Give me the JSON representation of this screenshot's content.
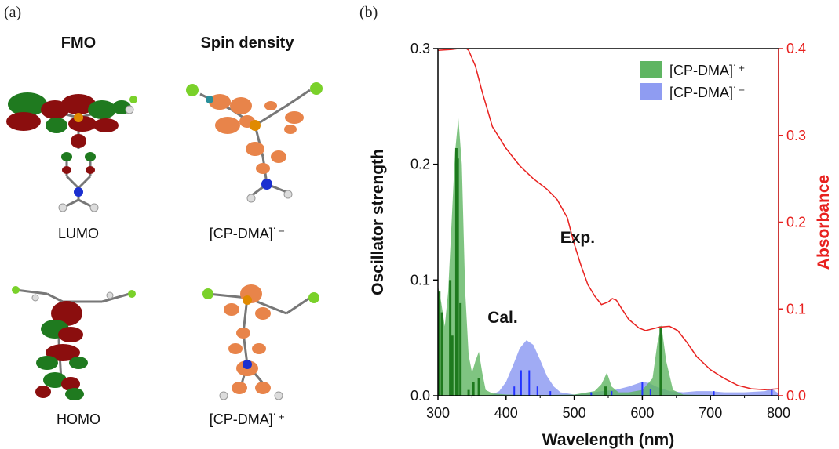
{
  "panel_a": {
    "tag": "(a)",
    "col_fmo": "FMO",
    "col_spin": "Spin density",
    "label_lumo": "LUMO",
    "label_homo": "HOMO",
    "label_anion": "[CP-DMA]˙⁻",
    "label_cation": "[CP-DMA]˙⁺",
    "colors": {
      "orbital_red": "#8b0e0e",
      "orbital_green": "#1f7a1f",
      "spin_orange": "#e8844a",
      "carbon": "#6f6f6f",
      "hydrogen": "#dcdcdc",
      "nitrogen": "#1b2fd0",
      "phosphorus": "#e08a00",
      "chlorine": "#7ad12a"
    }
  },
  "panel_b": {
    "tag": "(b)"
  },
  "chart_data": {
    "type": "line",
    "xlabel": "Wavelength (nm)",
    "ylabel_left": "Oscillator strength",
    "ylabel_right": "Absorbance",
    "xlim": [
      300,
      800
    ],
    "ylim_left": [
      0,
      0.3
    ],
    "ylim_right": [
      0,
      0.4
    ],
    "xticks": [
      "300",
      "400",
      "500",
      "600",
      "700",
      "800"
    ],
    "yticks_left": [
      "0.0",
      "0.1",
      "0.2",
      "0.3"
    ],
    "yticks_right": [
      "0.0",
      "0.1",
      "0.2",
      "0.3",
      "0.4"
    ],
    "legend_placement": "top-right",
    "annotations": {
      "exp": "Exp.",
      "cal": "Cal."
    },
    "colors": {
      "cation": "#3a9a3a",
      "cation_fill": "#5fb562",
      "anion": "#2233ff",
      "anion_fill": "#8f9cf2",
      "exp": "#e8211f",
      "axis_right": "#e8211f"
    },
    "series": [
      {
        "name": "[CP-DMA]˙⁺",
        "kind": "calc-envelope",
        "x": [
          300,
          305,
          310,
          315,
          320,
          325,
          330,
          335,
          340,
          345,
          350,
          355,
          360,
          365,
          370,
          380,
          400,
          450,
          500,
          530,
          540,
          548,
          555,
          565,
          580,
          600,
          615,
          622,
          628,
          635,
          645,
          660,
          700,
          800
        ],
        "values": [
          0.095,
          0.08,
          0.06,
          0.09,
          0.15,
          0.21,
          0.24,
          0.2,
          0.09,
          0.035,
          0.02,
          0.03,
          0.038,
          0.02,
          0.005,
          0.002,
          0.001,
          0.0005,
          0.001,
          0.004,
          0.01,
          0.02,
          0.008,
          0.003,
          0.003,
          0.005,
          0.015,
          0.045,
          0.061,
          0.03,
          0.005,
          0.001,
          0.0005,
          0.0003
        ],
        "sticks": [
          {
            "x": 302,
            "f": 0.09
          },
          {
            "x": 306,
            "f": 0.072
          },
          {
            "x": 318,
            "f": 0.1
          },
          {
            "x": 321,
            "f": 0.052
          },
          {
            "x": 327,
            "f": 0.214
          },
          {
            "x": 329,
            "f": 0.205
          },
          {
            "x": 333,
            "f": 0.08
          },
          {
            "x": 345,
            "f": 0.005
          },
          {
            "x": 352,
            "f": 0.012
          },
          {
            "x": 360,
            "f": 0.015
          },
          {
            "x": 546,
            "f": 0.008
          },
          {
            "x": 627,
            "f": 0.06
          }
        ]
      },
      {
        "name": "[CP-DMA]˙⁻",
        "kind": "calc-envelope",
        "x": [
          300,
          370,
          380,
          390,
          400,
          410,
          420,
          430,
          440,
          450,
          460,
          470,
          480,
          500,
          520,
          540,
          560,
          580,
          600,
          610,
          620,
          640,
          660,
          680,
          700,
          720,
          750,
          780,
          790,
          800
        ],
        "values": [
          0,
          0,
          0.001,
          0.004,
          0.012,
          0.026,
          0.041,
          0.048,
          0.044,
          0.031,
          0.017,
          0.008,
          0.003,
          0.001,
          0.002,
          0.004,
          0.005,
          0.008,
          0.012,
          0.011,
          0.008,
          0.004,
          0.003,
          0.004,
          0.004,
          0.003,
          0.003,
          0.004,
          0.006,
          0.002
        ],
        "sticks": [
          {
            "x": 412,
            "f": 0.008
          },
          {
            "x": 422,
            "f": 0.022
          },
          {
            "x": 434,
            "f": 0.022
          },
          {
            "x": 446,
            "f": 0.008
          },
          {
            "x": 465,
            "f": 0.004
          },
          {
            "x": 525,
            "f": 0.003
          },
          {
            "x": 545,
            "f": 0.004
          },
          {
            "x": 555,
            "f": 0.004
          },
          {
            "x": 600,
            "f": 0.012
          },
          {
            "x": 612,
            "f": 0.006
          },
          {
            "x": 705,
            "f": 0.004
          },
          {
            "x": 790,
            "f": 0.006
          }
        ]
      },
      {
        "name": "Exp.",
        "kind": "absorbance",
        "x": [
          300,
          320,
          340,
          345,
          355,
          365,
          380,
          400,
          420,
          440,
          460,
          475,
          490,
          500,
          510,
          520,
          530,
          540,
          550,
          556,
          562,
          570,
          580,
          595,
          605,
          615,
          625,
          640,
          652,
          665,
          680,
          700,
          720,
          740,
          760,
          780,
          800
        ],
        "values": [
          0.398,
          0.399,
          0.401,
          0.398,
          0.38,
          0.35,
          0.31,
          0.285,
          0.265,
          0.25,
          0.238,
          0.226,
          0.205,
          0.175,
          0.15,
          0.128,
          0.115,
          0.105,
          0.108,
          0.112,
          0.11,
          0.1,
          0.088,
          0.078,
          0.075,
          0.077,
          0.079,
          0.08,
          0.075,
          0.062,
          0.045,
          0.03,
          0.02,
          0.012,
          0.008,
          0.007,
          0.008
        ]
      }
    ]
  }
}
